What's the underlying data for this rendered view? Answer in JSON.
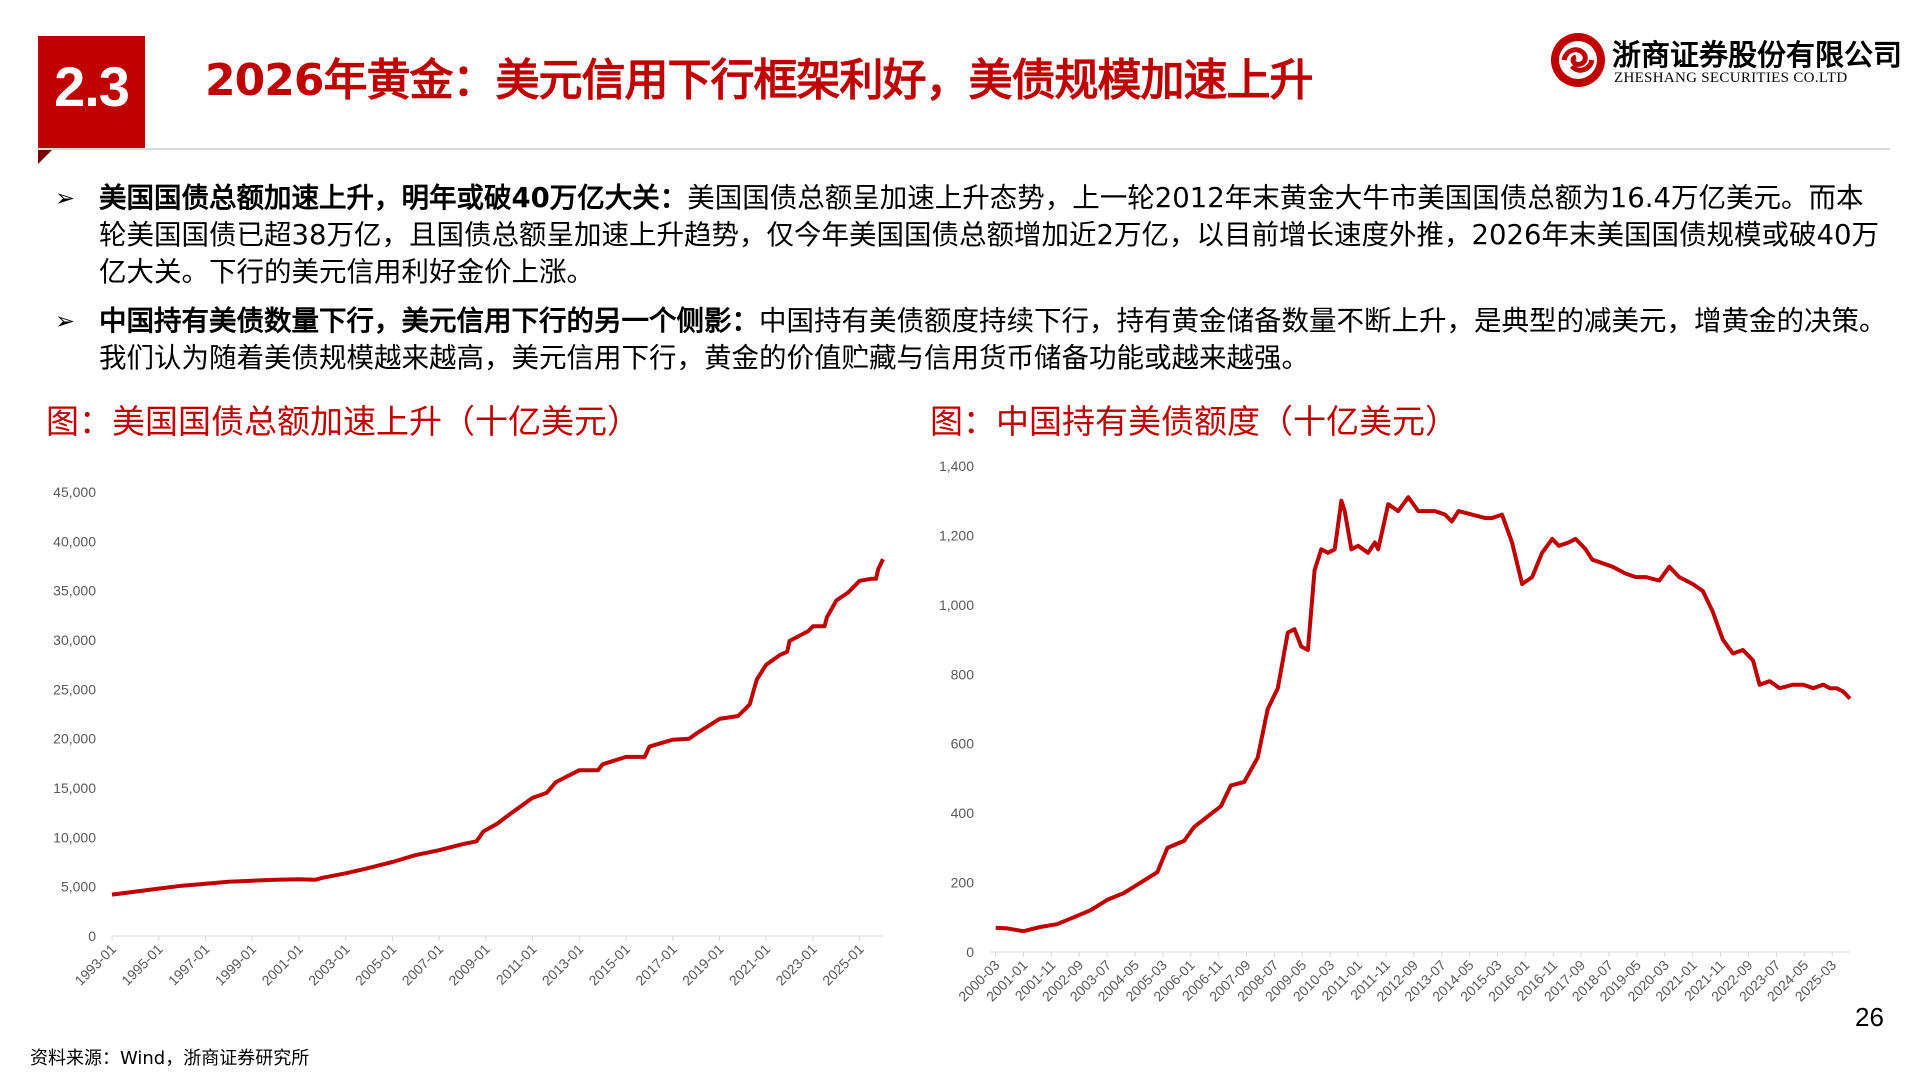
{
  "header": {
    "section_number": "2.3",
    "title": "2026年黄金：美元信用下行框架利好，美债规模加速上升",
    "company_cn": "浙商证券股份有限公司",
    "company_en": "ZHESHANG SECURITIES CO.LTD",
    "brand_color": "#c00000"
  },
  "bullets": [
    {
      "icon": "arrow-bullet-icon",
      "bold": "美国国债总额加速上升，明年或破40万亿大关：",
      "text": "美国国债总额呈加速上升态势，上一轮2012年末黄金大牛市美国国债总额为16.4万亿美元。而本轮美国国债已超38万亿，且国债总额呈加速上升趋势，仅今年美国国债总额增加近2万亿，以目前增长速度外推，2026年末美国国债规模或破40万亿大关。下行的美元信用利好金价上涨。"
    },
    {
      "icon": "arrow-bullet-icon",
      "bold": "中国持有美债数量下行，美元信用下行的另一个侧影：",
      "text": "中国持有美债额度持续下行，持有黄金储备数量不断上升，是典型的减美元，增黄金的决策。我们认为随着美债规模越来越高，美元信用下行，黄金的价值贮藏与信用货币储备功能或越来越强。"
    }
  ],
  "captions": {
    "left": "图：美国国债总额加速上升（十亿美元）",
    "right": "图：中国持有美债额度（十亿美元）"
  },
  "chart_data": [
    {
      "type": "line",
      "color": "#c00000",
      "title": "",
      "xlabel": "",
      "ylabel": "",
      "ylim": [
        0,
        45000
      ],
      "yticks": [
        0,
        5000,
        10000,
        15000,
        20000,
        25000,
        30000,
        35000,
        40000,
        45000
      ],
      "ytick_labels": [
        "0",
        "5,000",
        "10,000",
        "15,000",
        "20,000",
        "25,000",
        "30,000",
        "35,000",
        "40,000",
        "45,000"
      ],
      "xtick_labels": [
        "1993-01",
        "1995-01",
        "1997-01",
        "1999-01",
        "2001-01",
        "2003-01",
        "2005-01",
        "2007-01",
        "2009-01",
        "2011-01",
        "2013-01",
        "2015-01",
        "2017-01",
        "2019-01",
        "2021-01",
        "2023-01",
        "2025-01"
      ],
      "grid": false,
      "x": [
        1993.0,
        1994.0,
        1995.0,
        1996.0,
        1997.0,
        1998.0,
        1999.0,
        2000.0,
        2001.0,
        2001.7,
        2002.0,
        2003.0,
        2004.0,
        2005.0,
        2006.0,
        2007.0,
        2008.0,
        2008.6,
        2008.9,
        2009.5,
        2010.0,
        2011.0,
        2011.6,
        2012.0,
        2013.0,
        2013.8,
        2014.0,
        2015.0,
        2015.8,
        2016.0,
        2017.0,
        2017.7,
        2018.0,
        2019.0,
        2019.8,
        2020.1,
        2020.3,
        2020.6,
        2021.0,
        2021.6,
        2021.9,
        2022.0,
        2022.8,
        2023.0,
        2023.5,
        2023.6,
        2024.0,
        2024.5,
        2025.0,
        2025.5,
        2025.7,
        2025.8,
        2026.0
      ],
      "values": [
        4200,
        4500,
        4800,
        5100,
        5300,
        5500,
        5600,
        5700,
        5750,
        5700,
        5900,
        6350,
        6900,
        7500,
        8200,
        8700,
        9300,
        9600,
        10600,
        11400,
        12300,
        14000,
        14500,
        15600,
        16800,
        16800,
        17400,
        18150,
        18150,
        19200,
        19900,
        20000,
        20500,
        22000,
        22300,
        23000,
        23500,
        26000,
        27500,
        28500,
        28800,
        29900,
        30900,
        31400,
        31400,
        32300,
        34000,
        34800,
        36000,
        36200,
        36200,
        37200,
        38200
      ]
    },
    {
      "type": "line",
      "color": "#c00000",
      "title": "",
      "xlabel": "",
      "ylabel": "",
      "ylim": [
        0,
        1400
      ],
      "yticks": [
        0,
        200,
        400,
        600,
        800,
        1000,
        1200,
        1400
      ],
      "ytick_labels": [
        "0",
        "200",
        "400",
        "600",
        "800",
        "1,000",
        "1,200",
        "1,400"
      ],
      "xtick_labels": [
        "2000-03",
        "2001-01",
        "2001-11",
        "2002-09",
        "2003-07",
        "2004-05",
        "2005-03",
        "2006-01",
        "2006-11",
        "2007-09",
        "2008-07",
        "2009-05",
        "2010-03",
        "2011-01",
        "2011-11",
        "2012-09",
        "2013-07",
        "2014-05",
        "2015-03",
        "2016-01",
        "2016-11",
        "2017-09",
        "2018-07",
        "2019-05",
        "2020-03",
        "2021-01",
        "2021-11",
        "2022-09",
        "2023-07",
        "2024-05",
        "2025-03"
      ],
      "grid": false,
      "x": [
        2000.17,
        2000.5,
        2001.0,
        2001.5,
        2002.0,
        2002.5,
        2003.0,
        2003.5,
        2004.0,
        2004.5,
        2005.0,
        2005.3,
        2005.8,
        2006.1,
        2006.5,
        2006.9,
        2007.2,
        2007.6,
        2008.0,
        2008.3,
        2008.6,
        2008.9,
        2009.1,
        2009.3,
        2009.5,
        2009.7,
        2009.9,
        2010.1,
        2010.3,
        2010.5,
        2010.6,
        2010.8,
        2011.0,
        2011.3,
        2011.5,
        2011.6,
        2011.9,
        2012.2,
        2012.5,
        2012.8,
        2013.0,
        2013.3,
        2013.6,
        2013.8,
        2014.0,
        2014.4,
        2014.8,
        2015.0,
        2015.3,
        2015.6,
        2015.9,
        2016.2,
        2016.5,
        2016.8,
        2017.0,
        2017.3,
        2017.5,
        2017.8,
        2018.0,
        2018.3,
        2018.6,
        2019.0,
        2019.3,
        2019.6,
        2020.0,
        2020.3,
        2020.6,
        2021.0,
        2021.3,
        2021.6,
        2021.9,
        2022.2,
        2022.5,
        2022.8,
        2023.0,
        2023.3,
        2023.6,
        2024.0,
        2024.3,
        2024.6,
        2024.9,
        2025.1,
        2025.3,
        2025.5,
        2025.7
      ],
      "values": [
        70,
        68,
        60,
        72,
        80,
        100,
        120,
        150,
        170,
        200,
        230,
        300,
        320,
        360,
        390,
        420,
        480,
        490,
        560,
        700,
        760,
        920,
        930,
        880,
        870,
        1100,
        1160,
        1150,
        1160,
        1300,
        1270,
        1160,
        1170,
        1150,
        1180,
        1160,
        1290,
        1270,
        1310,
        1270,
        1270,
        1270,
        1260,
        1240,
        1270,
        1260,
        1250,
        1250,
        1260,
        1180,
        1060,
        1080,
        1150,
        1190,
        1170,
        1180,
        1190,
        1160,
        1130,
        1120,
        1110,
        1090,
        1080,
        1080,
        1070,
        1110,
        1080,
        1060,
        1040,
        980,
        900,
        860,
        870,
        840,
        770,
        780,
        760,
        770,
        770,
        760,
        770,
        760,
        760,
        750,
        730
      ]
    }
  ],
  "source": "资料来源：Wind，浙商证券研究所",
  "page_number": "26"
}
